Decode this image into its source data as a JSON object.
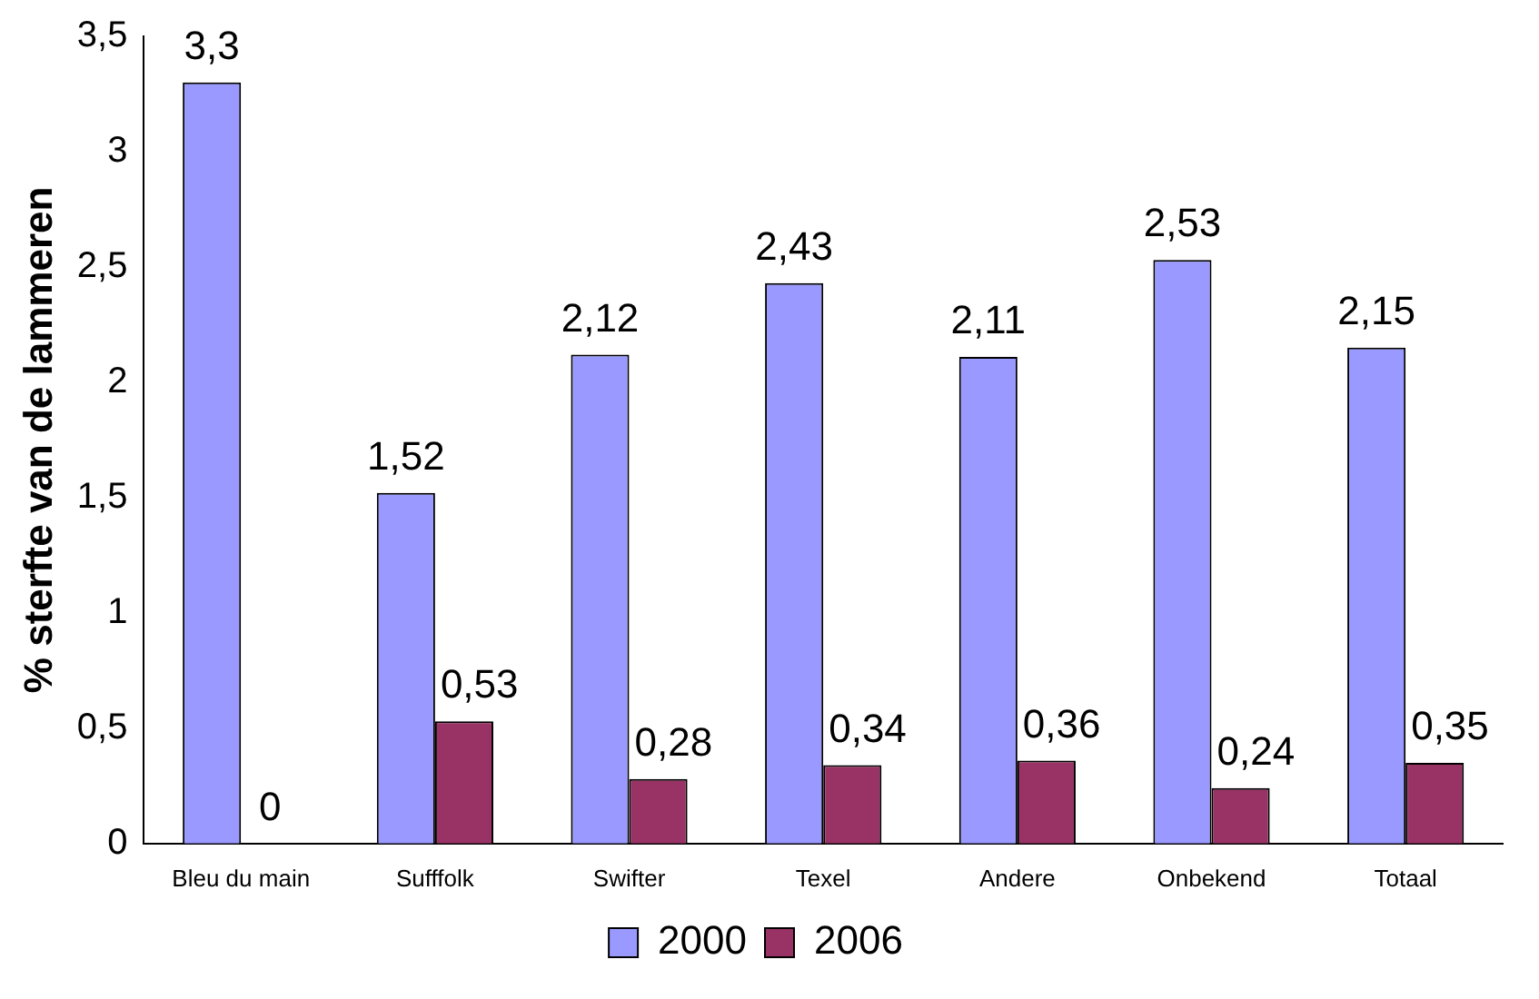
{
  "chart_data": {
    "type": "bar",
    "ylabel": "% sterfte van de lammeren",
    "categories": [
      "Bleu du main",
      "Sufffolk",
      "Swifter",
      "Texel",
      "Andere",
      "Onbekend",
      "Totaal"
    ],
    "series": [
      {
        "name": "2000",
        "color": "#9999ff",
        "values": [
          3.3,
          1.52,
          2.12,
          2.43,
          2.11,
          2.53,
          2.15
        ],
        "value_labels": [
          "3,3",
          "1,52",
          "2,12",
          "2,43",
          "2,11",
          "2,53",
          "2,15"
        ]
      },
      {
        "name": "2006",
        "color": "#993366",
        "values": [
          0,
          0.53,
          0.28,
          0.34,
          0.36,
          0.24,
          0.35
        ],
        "value_labels": [
          "0",
          "0,53",
          "0,28",
          "0,34",
          "0,36",
          "0,24",
          "0,35"
        ]
      }
    ],
    "ylim": [
      0,
      3.5
    ],
    "yticks": [
      0,
      {
        "value": 0.5,
        "label": "0,5"
      },
      1,
      {
        "value": 1.5,
        "label": "1,5"
      },
      2,
      {
        "value": 2.5,
        "label": "2,5"
      },
      3,
      {
        "value": 3.5,
        "label": "3,5"
      }
    ],
    "grid": false,
    "legend": "bottom"
  }
}
